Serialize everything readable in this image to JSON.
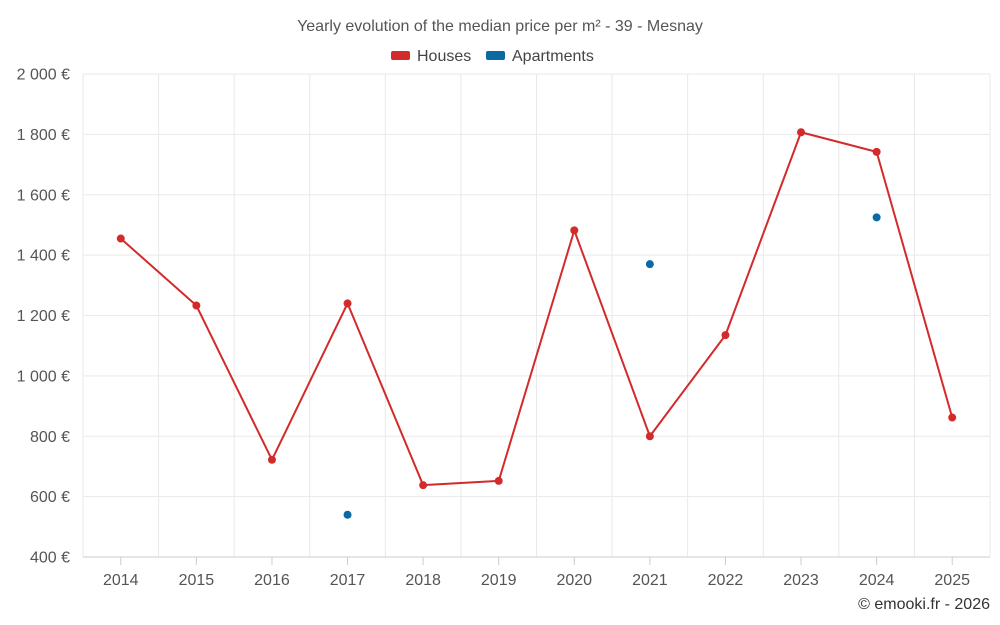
{
  "chart_data": {
    "type": "line",
    "title": "Yearly evolution of the median price per m² - 39 - Mesnay",
    "categories": [
      "2014",
      "2015",
      "2016",
      "2017",
      "2018",
      "2019",
      "2020",
      "2021",
      "2022",
      "2023",
      "2024",
      "2025"
    ],
    "y_ticks": [
      "400 €",
      "600 €",
      "800 €",
      "1 000 €",
      "1 200 €",
      "1 400 €",
      "1 600 €",
      "1 800 €",
      "2 000 €"
    ],
    "ylim": [
      400,
      2000
    ],
    "grid": true,
    "legend_position": "top-center",
    "series": [
      {
        "name": "Houses",
        "color": "#d32a2a",
        "connected": true,
        "values": [
          1455,
          1233,
          722,
          1240,
          638,
          652,
          1482,
          800,
          1135,
          1807,
          1742,
          862
        ]
      },
      {
        "name": "Apartments",
        "color": "#0a6aa1",
        "connected": false,
        "values": [
          null,
          null,
          null,
          540,
          null,
          null,
          null,
          1370,
          null,
          null,
          1525,
          null
        ]
      }
    ],
    "xlabel": "",
    "ylabel": ""
  },
  "credit": "© emooki.fr - 2026"
}
